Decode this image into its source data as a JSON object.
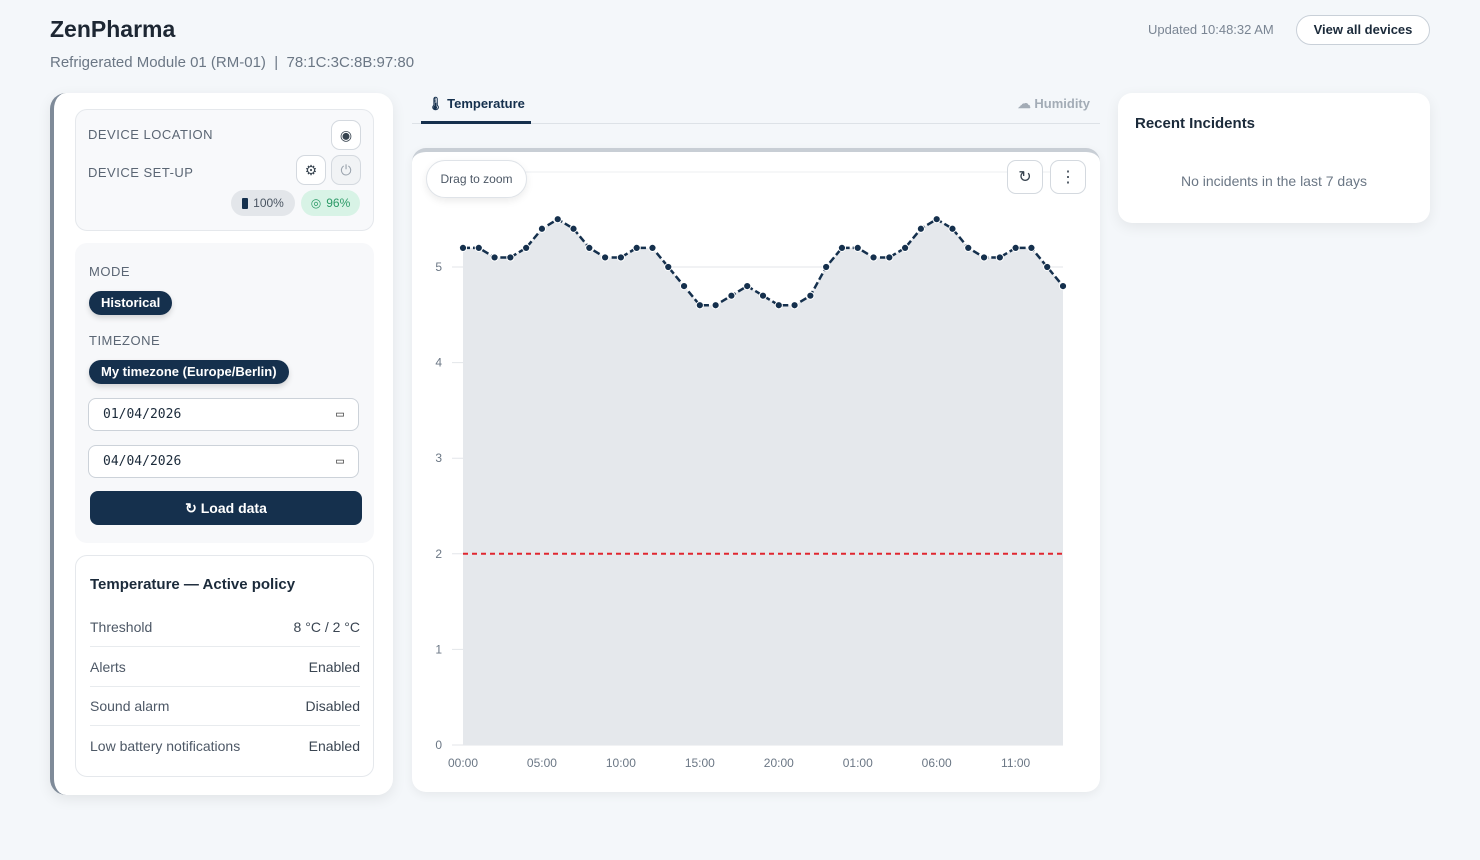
{
  "header": {
    "title": "ZenPharma",
    "subtitle": "Refrigerated Module 01 (RM-01)  |  78:1C:3C:8B:97:80",
    "updated": "Updated 10:48:32 AM",
    "view_all": "View all devices"
  },
  "device": {
    "location_label": "DEVICE LOCATION",
    "setup_label": "DEVICE SET-UP",
    "battery": "100%",
    "signal": "96%",
    "icons": [
      "eye-icon",
      "gear-icon",
      "power-icon",
      "battery-icon",
      "signal-icon"
    ]
  },
  "controls": {
    "mode_label": "MODE",
    "mode_value": "Historical",
    "timezone_label": "TIMEZONE",
    "timezone_value": "My timezone (Europe/Berlin)",
    "start_date": "01/04/2026",
    "end_date": "04/04/2026",
    "load_label": "Load data"
  },
  "policy": {
    "title": "Temperature — Active policy",
    "rows": [
      {
        "label": "Threshold",
        "value": "8 °C / 2 °C"
      },
      {
        "label": "Alerts",
        "value": "Enabled"
      },
      {
        "label": "Sound alarm",
        "value": "Disabled"
      },
      {
        "label": "Low battery notifications",
        "value": "Enabled"
      }
    ]
  },
  "tabs": [
    {
      "label": "Temperature",
      "active": true
    },
    {
      "label": "Humidity",
      "active": false
    }
  ],
  "chart_toolbar": {
    "drag_hint": "Drag to zoom"
  },
  "incidents": {
    "title": "Recent Incidents",
    "empty": "No incidents in the last 7 days"
  },
  "colors": {
    "primary": "#15304d",
    "threshold": "#e0262f",
    "area": "#e5e8ec",
    "signal_bg": "#d8f3e6"
  },
  "chart_data": {
    "type": "area",
    "ylim": [
      0,
      6
    ],
    "yticks": [
      0,
      1,
      2,
      3,
      4,
      5
    ],
    "x": [
      "00:00",
      "01:00",
      "02:00",
      "03:00",
      "04:00",
      "05:00",
      "06:00",
      "07:00",
      "08:00",
      "09:00",
      "10:00",
      "11:00",
      "12:00",
      "13:00",
      "14:00",
      "15:00",
      "16:00",
      "17:00",
      "18:00",
      "19:00",
      "20:00",
      "21:00",
      "22:00",
      "23:00",
      "00:00",
      "01:00",
      "02:00",
      "03:00",
      "04:00",
      "05:00",
      "06:00",
      "07:00",
      "08:00",
      "09:00",
      "10:00",
      "11:00",
      "12:00",
      "13:00",
      "14:00"
    ],
    "xtick_labels": [
      "00:00",
      "05:00",
      "10:00",
      "15:00",
      "20:00",
      "01:00",
      "06:00",
      "11:00"
    ],
    "values": [
      5.2,
      5.2,
      5.1,
      5.1,
      5.2,
      5.4,
      5.5,
      5.4,
      5.2,
      5.1,
      5.1,
      5.2,
      5.2,
      5.0,
      4.8,
      4.6,
      4.6,
      4.7,
      4.8,
      4.7,
      4.6,
      4.6,
      4.7,
      5.0,
      5.2,
      5.2,
      5.1,
      5.1,
      5.2,
      5.4,
      5.5,
      5.4,
      5.2,
      5.1,
      5.1,
      5.2,
      5.2,
      5.0,
      4.8
    ],
    "threshold_low": 2,
    "grid": true
  }
}
